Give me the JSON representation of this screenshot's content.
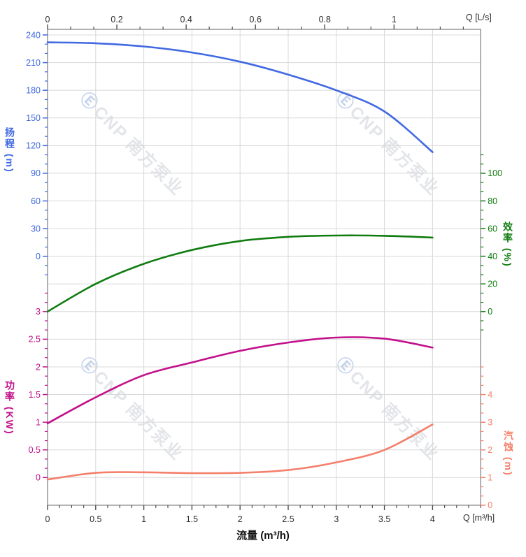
{
  "watermark": {
    "logo": "Ⓔ",
    "brand": "CNP 南方泵业"
  },
  "chart_data": {
    "type": "line",
    "title": "",
    "grid": true,
    "legend": false,
    "x": [
      0,
      0.5,
      1,
      1.5,
      2,
      2.5,
      3,
      3.5,
      4
    ],
    "axes": {
      "top": {
        "label": "Q [L/s]",
        "ticks": [
          0,
          0.2,
          0.4,
          0.6,
          0.8,
          1
        ],
        "range": [
          0,
          1.25
        ],
        "color": "#2e2e2e"
      },
      "bottom": {
        "label": "Q [m³/h]",
        "title": "流量 (m³/h)",
        "ticks": [
          0,
          0.5,
          1,
          1.5,
          2,
          2.5,
          3,
          3.5,
          4
        ],
        "range": [
          0,
          4.5
        ],
        "color": "#2e2e2e"
      },
      "head": {
        "title": "扬程 (m)",
        "side": "left",
        "ticks": [
          0,
          30,
          60,
          90,
          120,
          150,
          180,
          210,
          240
        ],
        "range": [
          0,
          240
        ],
        "color": "#4169e1"
      },
      "efficiency": {
        "title": "效率 (%)",
        "side": "right",
        "ticks": [
          0,
          20,
          40,
          60,
          80,
          100
        ],
        "range": [
          0,
          100
        ],
        "color": "#107c10"
      },
      "power": {
        "title": "功率 (KW)",
        "side": "left",
        "ticks": [
          0,
          0.5,
          1,
          1.5,
          2,
          2.5,
          3
        ],
        "range": [
          0,
          3
        ],
        "color": "#c2108a"
      },
      "npsh": {
        "title": "汽蚀 (m)",
        "side": "right",
        "ticks": [
          0,
          1,
          2,
          3,
          4
        ],
        "range": [
          0,
          4
        ],
        "color": "#f4806b"
      }
    },
    "series": [
      {
        "name": "扬程",
        "axis": "head",
        "color": "#4169e1",
        "values": [
          232,
          231,
          227.5,
          221,
          211,
          197,
          180,
          157,
          113
        ]
      },
      {
        "name": "效率",
        "axis": "efficiency",
        "color": "#107c10",
        "values": [
          0,
          20,
          34.5,
          44.5,
          51,
          54,
          55,
          54.8,
          53.5
        ]
      },
      {
        "name": "功率",
        "axis": "power",
        "color": "#c2108a",
        "values": [
          0.98,
          1.45,
          1.85,
          2.08,
          2.29,
          2.44,
          2.53,
          2.51,
          2.35
        ]
      },
      {
        "name": "汽蚀",
        "axis": "npsh",
        "color": "#f4806b",
        "values": [
          0.93,
          1.17,
          1.19,
          1.16,
          1.17,
          1.27,
          1.55,
          2.0,
          2.92
        ]
      }
    ]
  }
}
